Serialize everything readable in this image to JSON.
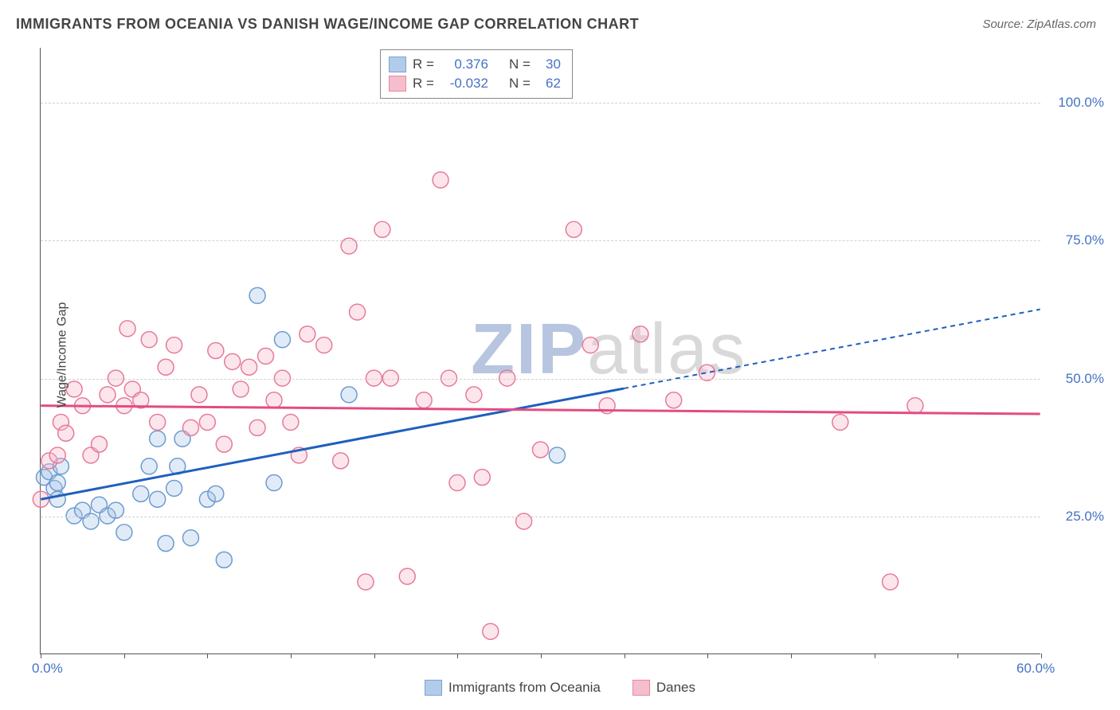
{
  "title": "IMMIGRANTS FROM OCEANIA VS DANISH WAGE/INCOME GAP CORRELATION CHART",
  "source": "Source: ZipAtlas.com",
  "ylabel": "Wage/Income Gap",
  "watermark_zip": "ZIP",
  "watermark_atlas": "atlas",
  "chart": {
    "type": "scatter",
    "xlim": [
      0,
      60
    ],
    "ylim": [
      0,
      110
    ],
    "x_ticks_minor": [
      0,
      5,
      10,
      15,
      20,
      25,
      30,
      35,
      40,
      45,
      50,
      55,
      60
    ],
    "x_tick_labels": [
      {
        "v": 0,
        "label": "0.0%"
      },
      {
        "v": 60,
        "label": "60.0%"
      }
    ],
    "y_gridlines": [
      25,
      50,
      75,
      100
    ],
    "y_tick_labels": [
      {
        "v": 25,
        "label": "25.0%"
      },
      {
        "v": 50,
        "label": "50.0%"
      },
      {
        "v": 75,
        "label": "75.0%"
      },
      {
        "v": 100,
        "label": "100.0%"
      }
    ],
    "background_color": "#ffffff",
    "grid_color": "#d0d0d0",
    "axis_color": "#555555",
    "tick_label_color": "#4472c4",
    "marker_radius": 10,
    "marker_stroke_width": 1.5,
    "marker_fill_opacity": 0.35,
    "watermark_color_zip": "#b8c5e0",
    "watermark_color_atlas": "#d9d9d9",
    "series": [
      {
        "name": "Immigrants from Oceania",
        "color_stroke": "#6b9bd1",
        "color_fill": "#a9c6e8",
        "R": "0.376",
        "N": "30",
        "trend": {
          "x1": 0,
          "y1": 28,
          "x2": 40,
          "y2": 51,
          "x_solid_end": 35,
          "color": "#1f5fbf",
          "width": 3,
          "dash": "6,5"
        },
        "points": [
          [
            0.2,
            32
          ],
          [
            0.5,
            33
          ],
          [
            0.8,
            30
          ],
          [
            1.0,
            31
          ],
          [
            1.0,
            28
          ],
          [
            1.2,
            34
          ],
          [
            2.0,
            25
          ],
          [
            2.5,
            26
          ],
          [
            3.0,
            24
          ],
          [
            3.5,
            27
          ],
          [
            4.0,
            25
          ],
          [
            4.5,
            26
          ],
          [
            5.0,
            22
          ],
          [
            6.0,
            29
          ],
          [
            6.5,
            34
          ],
          [
            7.0,
            28
          ],
          [
            7.5,
            20
          ],
          [
            8.0,
            30
          ],
          [
            8.2,
            34
          ],
          [
            9.0,
            21
          ],
          [
            7.0,
            39
          ],
          [
            8.5,
            39
          ],
          [
            10.0,
            28
          ],
          [
            10.5,
            29
          ],
          [
            11.0,
            17
          ],
          [
            13.0,
            65
          ],
          [
            14.5,
            57
          ],
          [
            14.0,
            31
          ],
          [
            18.5,
            47
          ],
          [
            31.0,
            36
          ]
        ]
      },
      {
        "name": "Danes",
        "color_stroke": "#e67a9a",
        "color_fill": "#f5b8c8",
        "R": "-0.032",
        "N": "62",
        "trend": {
          "x1": 0,
          "y1": 45,
          "x2": 60,
          "y2": 43.5,
          "x_solid_end": 60,
          "color": "#e34b82",
          "width": 3,
          "dash": ""
        },
        "points": [
          [
            0.0,
            28
          ],
          [
            0.5,
            35
          ],
          [
            1.0,
            36
          ],
          [
            1.2,
            42
          ],
          [
            1.5,
            40
          ],
          [
            2.0,
            48
          ],
          [
            2.5,
            45
          ],
          [
            3.0,
            36
          ],
          [
            3.5,
            38
          ],
          [
            4.0,
            47
          ],
          [
            4.5,
            50
          ],
          [
            5.0,
            45
          ],
          [
            5.2,
            59
          ],
          [
            5.5,
            48
          ],
          [
            6.0,
            46
          ],
          [
            6.5,
            57
          ],
          [
            7.0,
            42
          ],
          [
            7.5,
            52
          ],
          [
            8.0,
            56
          ],
          [
            9.0,
            41
          ],
          [
            9.5,
            47
          ],
          [
            10.0,
            42
          ],
          [
            10.5,
            55
          ],
          [
            11.0,
            38
          ],
          [
            11.5,
            53
          ],
          [
            12.0,
            48
          ],
          [
            12.5,
            52
          ],
          [
            13.0,
            41
          ],
          [
            13.5,
            54
          ],
          [
            14.0,
            46
          ],
          [
            14.5,
            50
          ],
          [
            15.0,
            42
          ],
          [
            15.5,
            36
          ],
          [
            16.0,
            58
          ],
          [
            17.0,
            56
          ],
          [
            18.0,
            35
          ],
          [
            18.5,
            74
          ],
          [
            19.0,
            62
          ],
          [
            19.5,
            13
          ],
          [
            20.0,
            50
          ],
          [
            20.5,
            77
          ],
          [
            21.0,
            50
          ],
          [
            22.0,
            14
          ],
          [
            23.0,
            46
          ],
          [
            24.0,
            86
          ],
          [
            24.5,
            50
          ],
          [
            25.0,
            31
          ],
          [
            26.0,
            47
          ],
          [
            26.5,
            32
          ],
          [
            27.0,
            4
          ],
          [
            28.0,
            50
          ],
          [
            29.0,
            24
          ],
          [
            30.0,
            37
          ],
          [
            32.0,
            77
          ],
          [
            33.0,
            56
          ],
          [
            34.0,
            45
          ],
          [
            36.0,
            58
          ],
          [
            38.0,
            46
          ],
          [
            40.0,
            51
          ],
          [
            48.0,
            42
          ],
          [
            51.0,
            13
          ],
          [
            52.5,
            45
          ]
        ]
      }
    ]
  },
  "legend_top": {
    "R_label": "R =",
    "N_label": "N ="
  },
  "legend_bottom": {
    "series1": "Immigrants from Oceania",
    "series2": "Danes"
  }
}
